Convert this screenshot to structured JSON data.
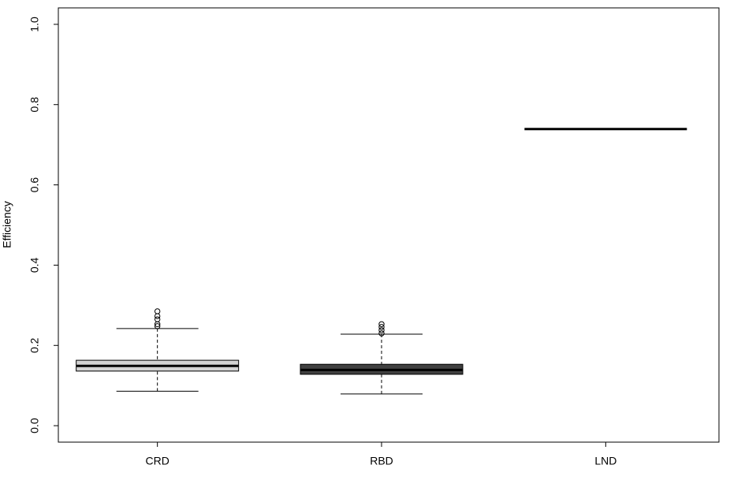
{
  "chart_data": {
    "type": "boxplot",
    "y_label": "Efficiency",
    "categories": [
      "CRD",
      "RBD",
      "LND"
    ],
    "colors": [
      "#d3d3d3",
      "#404040",
      "#ffffff"
    ],
    "boxes": [
      {
        "whisker_low": 0.086,
        "q1": 0.136,
        "median": 0.149,
        "q3": 0.163,
        "whisker_high": 0.242,
        "outliers": [
          0.248,
          0.253,
          0.265,
          0.273,
          0.285
        ]
      },
      {
        "whisker_low": 0.079,
        "q1": 0.128,
        "median": 0.139,
        "q3": 0.153,
        "whisker_high": 0.228,
        "outliers": [
          0.23,
          0.238,
          0.246,
          0.253
        ]
      },
      {
        "whisker_low": 0.739,
        "q1": 0.739,
        "median": 0.739,
        "q3": 0.739,
        "whisker_high": 0.739,
        "outliers": []
      }
    ],
    "ylim": [
      -0.041,
      1.041
    ],
    "yticks": [
      {
        "value": 0,
        "label": "0.0"
      },
      0.2,
      0.4,
      0.6,
      0.8,
      {
        "value": 1,
        "label": "1.0"
      }
    ]
  }
}
